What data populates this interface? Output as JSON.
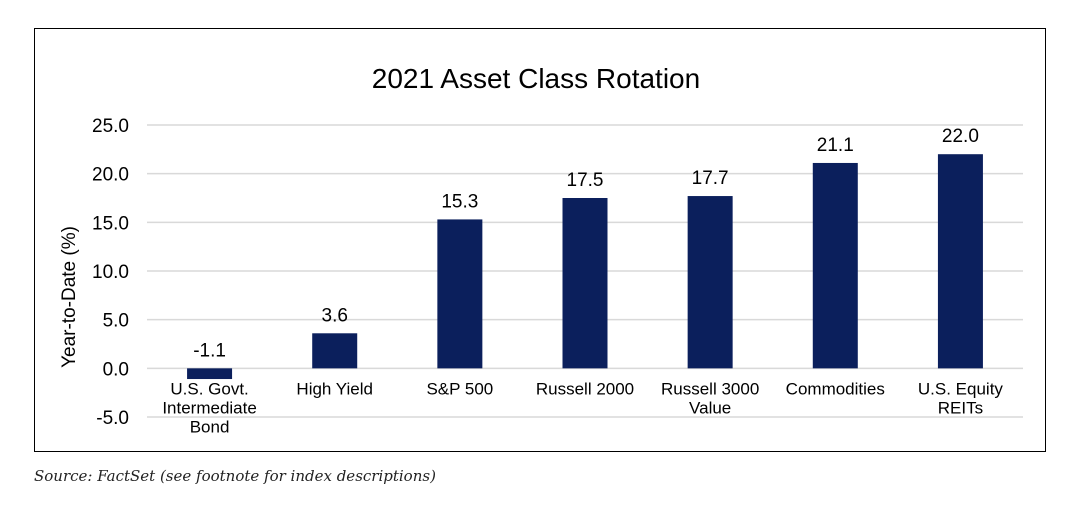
{
  "chart_data": {
    "type": "bar",
    "title": "2021 Asset Class Rotation",
    "ylabel": "Year-to-Date (%)",
    "xlabel": "",
    "ylim": [
      -5,
      25
    ],
    "yticks": [
      "25.0",
      "20.0",
      "15.0",
      "10.0",
      "5.0",
      "0.0",
      "-5.0"
    ],
    "ytick_values": [
      25,
      20,
      15,
      10,
      5,
      0,
      -5
    ],
    "categories": [
      [
        "U.S. Govt.",
        "Intermediate",
        "Bond"
      ],
      [
        "High Yield"
      ],
      [
        "S&P 500"
      ],
      [
        "Russell 2000"
      ],
      [
        "Russell 3000",
        "Value"
      ],
      [
        "Commodities"
      ],
      [
        "U.S. Equity",
        "REITs"
      ]
    ],
    "values": [
      -1.1,
      3.6,
      15.3,
      17.5,
      17.7,
      21.1,
      22.0
    ],
    "value_labels": [
      "-1.1",
      "3.6",
      "15.3",
      "17.5",
      "17.7",
      "21.1",
      "22.0"
    ],
    "grid": true,
    "legend": "none",
    "bar_color": "#0b1f5c",
    "grid_color": "#d9d9d9"
  },
  "source": "Source: FactSet (see footnote for index descriptions)"
}
